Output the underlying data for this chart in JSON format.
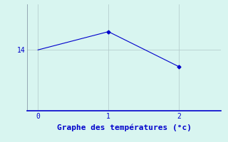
{
  "x": [
    0,
    1,
    2
  ],
  "y": [
    14.0,
    14.6,
    13.45
  ],
  "line_color": "#0000cc",
  "marker": "D",
  "marker_size": 2.5,
  "bg_color": "#d8f5f0",
  "grid_color": "#b0c8c8",
  "spine_color": "#8899aa",
  "bottom_spine_color": "#0000cc",
  "axis_color": "#0000cc",
  "label_color": "#0000cc",
  "tick_color": "#0000cc",
  "xlabel": "Graphe des températures (°c)",
  "xlabel_fontsize": 8,
  "ytick_labels": [
    "14"
  ],
  "ytick_values": [
    14.0
  ],
  "xlim": [
    -0.15,
    2.6
  ],
  "ylim": [
    12.0,
    15.5
  ],
  "xtick_values": [
    0,
    1,
    2
  ],
  "figsize": [
    3.2,
    2.0
  ],
  "dpi": 100
}
